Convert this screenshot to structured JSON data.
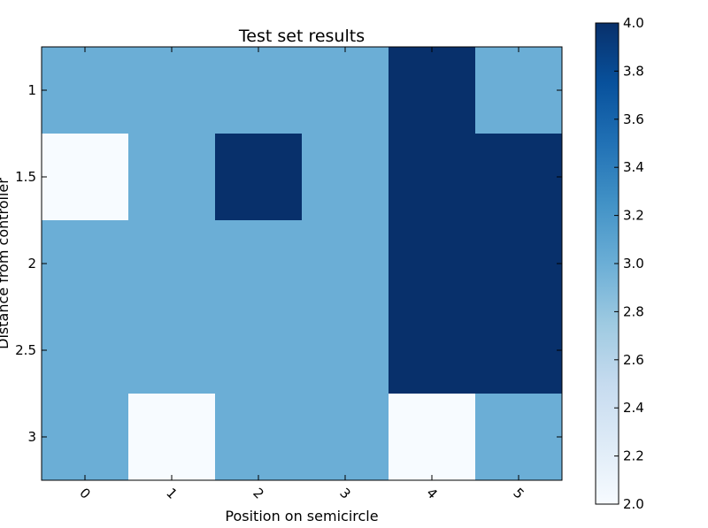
{
  "chart_data": {
    "type": "heatmap",
    "title": "Test set results",
    "xlabel": "Position on semicircle",
    "ylabel": "Distance from controller",
    "x_categories": [
      "0",
      "1",
      "2",
      "3",
      "4",
      "5"
    ],
    "y_categories": [
      "1",
      "1.5",
      "2",
      "2.5",
      "3"
    ],
    "values": [
      [
        3,
        3,
        3,
        3,
        4,
        3
      ],
      [
        2,
        3,
        4,
        3,
        4,
        4
      ],
      [
        3,
        3,
        3,
        3,
        4,
        4
      ],
      [
        3,
        3,
        3,
        3,
        4,
        4
      ],
      [
        3,
        2,
        3,
        3,
        2,
        3
      ]
    ],
    "colorbar": {
      "vmin": 2.0,
      "vmax": 4.0,
      "ticks": [
        "2.0",
        "2.2",
        "2.4",
        "2.6",
        "2.8",
        "3.0",
        "3.2",
        "3.4",
        "3.6",
        "3.8",
        "4.0"
      ],
      "colormap": "Blues",
      "colors": {
        "low": "#f7fbff",
        "mid": "#6baed6",
        "high": "#08306b"
      }
    },
    "x_tick_rotation": "45 degrees",
    "grid": false
  }
}
